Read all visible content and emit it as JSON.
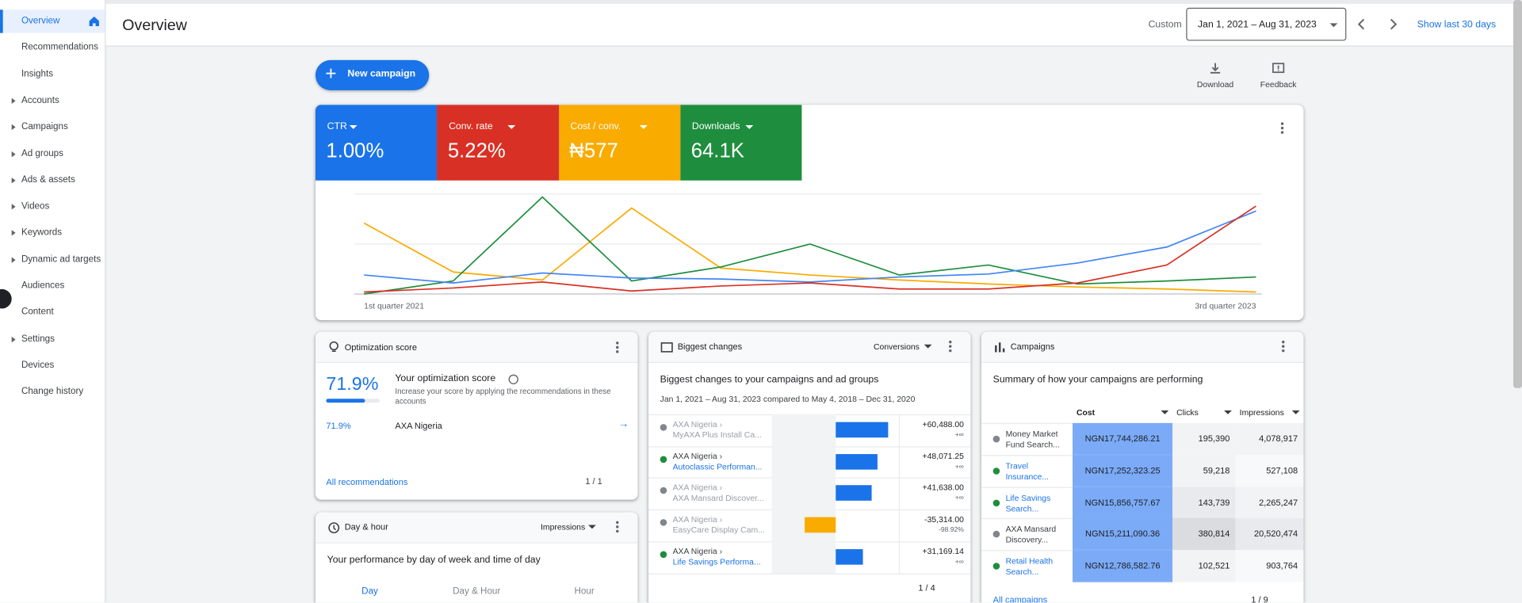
{
  "sidebar": {
    "items": [
      {
        "label": "Overview",
        "expandable": false,
        "selected": true
      },
      {
        "label": "Recommendations",
        "expandable": false
      },
      {
        "label": "Insights",
        "expandable": false
      },
      {
        "label": "Accounts",
        "expandable": true
      },
      {
        "label": "Campaigns",
        "expandable": true
      },
      {
        "label": "Ad groups",
        "expandable": true
      },
      {
        "label": "Ads & assets",
        "expandable": true
      },
      {
        "label": "Videos",
        "expandable": true
      },
      {
        "label": "Keywords",
        "expandable": true
      },
      {
        "label": "Dynamic ad targets",
        "expandable": true
      },
      {
        "label": "Audiences",
        "expandable": false
      },
      {
        "label": "Content",
        "expandable": false
      },
      {
        "label": "Settings",
        "expandable": true
      },
      {
        "label": "Devices",
        "expandable": false
      },
      {
        "label": "Change history",
        "expandable": false
      }
    ]
  },
  "header": {
    "title": "Overview",
    "range_label": "Custom",
    "date_range": "Jan 1, 2021 – Aug 31, 2023",
    "show_last": "Show last 30 days"
  },
  "actions": {
    "new_campaign": "New campaign",
    "download": "Download",
    "feedback": "Feedback"
  },
  "metrics": [
    {
      "name": "CTR",
      "value": "1.00%",
      "color": "#1a73e8"
    },
    {
      "name": "Conv. rate",
      "value": "5.22%",
      "color": "#d93025"
    },
    {
      "name": "Cost / conv.",
      "value": "₦577",
      "color": "#f9ab00"
    },
    {
      "name": "Downloads",
      "value": "64.1K",
      "color": "#1e8e3e"
    }
  ],
  "chart": {
    "type": "line",
    "x_labels": [
      "1st quarter 2021",
      "3rd quarter 2023"
    ],
    "ylim": [
      0,
      100
    ],
    "series": [
      {
        "name": "Cost / conv.",
        "color": "#f9ab00",
        "values": [
          71,
          22,
          14,
          86,
          26,
          19,
          14,
          10,
          7,
          5,
          2
        ]
      },
      {
        "name": "Downloads",
        "color": "#1e8e3e",
        "values": [
          0,
          13,
          97,
          13,
          27,
          50,
          19,
          29,
          10,
          13,
          17
        ]
      },
      {
        "name": "CTR",
        "color": "#4285f4",
        "values": [
          19,
          11,
          21,
          16,
          15,
          12,
          17,
          20,
          31,
          47,
          83
        ]
      },
      {
        "name": "Conv. rate",
        "color": "#d93025",
        "values": [
          2,
          6,
          12,
          3,
          8,
          11,
          5,
          5,
          11,
          29,
          88
        ]
      }
    ]
  },
  "optimization": {
    "title": "Optimization score",
    "score": 71.9,
    "score_label": "71.9%",
    "heading": "Your optimization score",
    "description": "Increase your score by applying the recommendations in these accounts",
    "account_score": "71.9%",
    "account": "AXA Nigeria",
    "link": "All recommendations",
    "pager": "1 / 1"
  },
  "day_hour": {
    "title": "Day & hour",
    "metric": "Impressions",
    "heading": "Your performance by day of week and time of day",
    "tabs": [
      "Day",
      "Day & Hour",
      "Hour"
    ]
  },
  "biggest_changes": {
    "title": "Biggest changes",
    "metric": "Conversions",
    "heading": "Biggest changes to your campaigns and ad groups",
    "period": "Jan 1, 2021 – Aug 31, 2023 compared to May 4, 2018 – Dec 31, 2020",
    "pager": "1 / 4",
    "rows": [
      {
        "account": "AXA Nigeria ›",
        "name": "MyAXA Plus Install Ca...",
        "dot_color": "#80868b",
        "value": 60488,
        "value_label": "+60,488.00",
        "sub": "+∞"
      },
      {
        "account": "AXA Nigeria ›",
        "name": "Autoclassic Performan...",
        "dot_color": "#1e8e3e",
        "value": 48071.25,
        "value_label": "+48,071.25",
        "sub": "+∞"
      },
      {
        "account": "AXA Nigeria ›",
        "name": "AXA Mansard Discover...",
        "dot_color": "#80868b",
        "value": 41638,
        "value_label": "+41,638.00",
        "sub": "+∞"
      },
      {
        "account": "AXA Nigeria ›",
        "name": "EasyCare Display Cam...",
        "dot_color": "#80868b",
        "value": -35314,
        "value_label": "-35,314.00",
        "sub": "-98.92%"
      },
      {
        "account": "AXA Nigeria ›",
        "name": "Life Savings Performa...",
        "dot_color": "#1e8e3e",
        "value": 31169.14,
        "value_label": "+31,169.14",
        "sub": "+∞"
      }
    ]
  },
  "campaigns": {
    "title": "Campaigns",
    "heading": "Summary of how your campaigns are performing",
    "columns": [
      "Cost",
      "Clicks",
      "Impressions"
    ],
    "link": "All campaigns",
    "pager": "1 / 9",
    "rows": [
      {
        "name": [
          "Money Market",
          "Fund Search..."
        ],
        "dot_color": "#80868b",
        "cost": "NGN17,744,286.21",
        "clicks": "195,390",
        "impressions": "4,078,917"
      },
      {
        "name": [
          "Travel",
          "Insurance..."
        ],
        "dot_color": "#1e8e3e",
        "cost": "NGN17,252,323.25",
        "clicks": "59,218",
        "impressions": "527,108"
      },
      {
        "name": [
          "Life Savings",
          "Search..."
        ],
        "dot_color": "#1e8e3e",
        "cost": "NGN15,856,757.67",
        "clicks": "143,739",
        "impressions": "2,265,247"
      },
      {
        "name": [
          "AXA Mansard",
          "Discovery..."
        ],
        "dot_color": "#80868b",
        "cost": "NGN15,211,090.36",
        "clicks": "380,814",
        "impressions": "20,520,474"
      },
      {
        "name": [
          "Retail Health",
          "Search..."
        ],
        "dot_color": "#1e8e3e",
        "cost": "NGN12,786,582.76",
        "clicks": "102,521",
        "impressions": "903,764"
      }
    ]
  }
}
